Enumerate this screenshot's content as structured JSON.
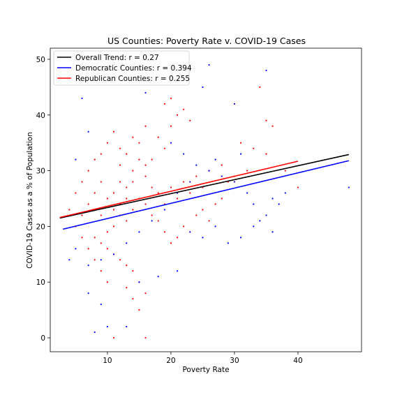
{
  "chart_data": {
    "type": "scatter",
    "title": "US Counties: Poverty Rate v. COVID-19 Cases",
    "xlabel": "Poverty Rate",
    "ylabel": "COVID-19 Cases as a % of Population",
    "xlim": [
      1.0,
      50.0
    ],
    "ylim": [
      -2.5,
      52.0
    ],
    "xticks": [
      10,
      20,
      30,
      40
    ],
    "yticks": [
      0,
      10,
      20,
      30,
      40,
      50
    ],
    "grid": false,
    "legend_position": "top-left",
    "series": [
      {
        "name": "Overall Trend: r = 0.27",
        "kind": "line",
        "color": "#000000",
        "x": [
          2.5,
          48.0
        ],
        "y": [
          21.5,
          32.9
        ]
      },
      {
        "name": "Democratic Counties: r = 0.394",
        "kind": "line",
        "color": "#0000ff",
        "x": [
          3.0,
          48.0
        ],
        "y": [
          19.5,
          31.8
        ]
      },
      {
        "name": "Republican Counties: r = 0.255",
        "kind": "line",
        "color": "#ff0000",
        "x": [
          2.5,
          40.0
        ],
        "y": [
          21.6,
          31.7
        ]
      }
    ],
    "scatter_series": [
      {
        "group": "republican",
        "color": "#ff0000",
        "points": [
          [
            10,
            25
          ],
          [
            11,
            26
          ],
          [
            12,
            24
          ],
          [
            13,
            27
          ],
          [
            14,
            23
          ],
          [
            9,
            22
          ],
          [
            8,
            26
          ],
          [
            12,
            28
          ],
          [
            13,
            21
          ],
          [
            15,
            25
          ],
          [
            16,
            24
          ],
          [
            17,
            22
          ],
          [
            11,
            20
          ],
          [
            10,
            19
          ],
          [
            9,
            28
          ],
          [
            14,
            30
          ],
          [
            12,
            31
          ],
          [
            13,
            33
          ],
          [
            15,
            35
          ],
          [
            16,
            29
          ],
          [
            18,
            26
          ],
          [
            19,
            24
          ],
          [
            20,
            27
          ],
          [
            21,
            25
          ],
          [
            22,
            28
          ],
          [
            23,
            26
          ],
          [
            24,
            29
          ],
          [
            25,
            27
          ],
          [
            7,
            24
          ],
          [
            6,
            22
          ],
          [
            8,
            18
          ],
          [
            9,
            17
          ],
          [
            10,
            16
          ],
          [
            11,
            15
          ],
          [
            12,
            14
          ],
          [
            13,
            13
          ],
          [
            14,
            12
          ],
          [
            15,
            10
          ],
          [
            16,
            8
          ],
          [
            13,
            9
          ],
          [
            14,
            7
          ],
          [
            15,
            5
          ],
          [
            16,
            0
          ],
          [
            11,
            0
          ],
          [
            17,
            32
          ],
          [
            18,
            36
          ],
          [
            19,
            34
          ],
          [
            20,
            38
          ],
          [
            21,
            40
          ],
          [
            22,
            41
          ],
          [
            23,
            39
          ],
          [
            20,
            43
          ],
          [
            19,
            42
          ],
          [
            16,
            38
          ],
          [
            14,
            36
          ],
          [
            12,
            34
          ],
          [
            11,
            37
          ],
          [
            10,
            35
          ],
          [
            9,
            33
          ],
          [
            8,
            32
          ],
          [
            7,
            30
          ],
          [
            6,
            28
          ],
          [
            5,
            26
          ],
          [
            4,
            23
          ],
          [
            5,
            20
          ],
          [
            6,
            18
          ],
          [
            7,
            16
          ],
          [
            8,
            14
          ],
          [
            9,
            12
          ],
          [
            10,
            10
          ],
          [
            24,
            22
          ],
          [
            26,
            21
          ],
          [
            27,
            24
          ],
          [
            28,
            25
          ],
          [
            25,
            23
          ],
          [
            26,
            30
          ],
          [
            28,
            31
          ],
          [
            30,
            29
          ],
          [
            32,
            30
          ],
          [
            33,
            34
          ],
          [
            35,
            33
          ],
          [
            34,
            45
          ],
          [
            35,
            39
          ],
          [
            36,
            38
          ],
          [
            38,
            30
          ],
          [
            40,
            27
          ],
          [
            31,
            35
          ],
          [
            29,
            28
          ],
          [
            22,
            20
          ],
          [
            21,
            18
          ],
          [
            20,
            17
          ],
          [
            19,
            19
          ],
          [
            18,
            21
          ],
          [
            17,
            27
          ],
          [
            16,
            31
          ],
          [
            15,
            32
          ],
          [
            14,
            28
          ],
          [
            13,
            25
          ],
          [
            12,
            22
          ],
          [
            11,
            23
          ]
        ]
      },
      {
        "group": "democratic",
        "color": "#0000ff",
        "points": [
          [
            26,
            49
          ],
          [
            35,
            48
          ],
          [
            16,
            44
          ],
          [
            25,
            45
          ],
          [
            30,
            42
          ],
          [
            6,
            43
          ],
          [
            7,
            37
          ],
          [
            5,
            32
          ],
          [
            4,
            14
          ],
          [
            5,
            16
          ],
          [
            7,
            8
          ],
          [
            9,
            6
          ],
          [
            8,
            1
          ],
          [
            10,
            2
          ],
          [
            13,
            2
          ],
          [
            15,
            10
          ],
          [
            18,
            11
          ],
          [
            21,
            12
          ],
          [
            23,
            19
          ],
          [
            25,
            18
          ],
          [
            27,
            20
          ],
          [
            29,
            17
          ],
          [
            31,
            18
          ],
          [
            33,
            20
          ],
          [
            35,
            22
          ],
          [
            37,
            24
          ],
          [
            38,
            26
          ],
          [
            36,
            19
          ],
          [
            34,
            21
          ],
          [
            32,
            26
          ],
          [
            30,
            28
          ],
          [
            28,
            29
          ],
          [
            26,
            30
          ],
          [
            24,
            31
          ],
          [
            22,
            33
          ],
          [
            20,
            35
          ],
          [
            33,
            24
          ],
          [
            36,
            25
          ],
          [
            48,
            27
          ],
          [
            31,
            33
          ],
          [
            27,
            32
          ],
          [
            23,
            28
          ],
          [
            21,
            26
          ],
          [
            19,
            23
          ],
          [
            17,
            21
          ],
          [
            15,
            19
          ],
          [
            13,
            17
          ],
          [
            11,
            15
          ],
          [
            9,
            14
          ],
          [
            7,
            13
          ]
        ]
      }
    ]
  }
}
